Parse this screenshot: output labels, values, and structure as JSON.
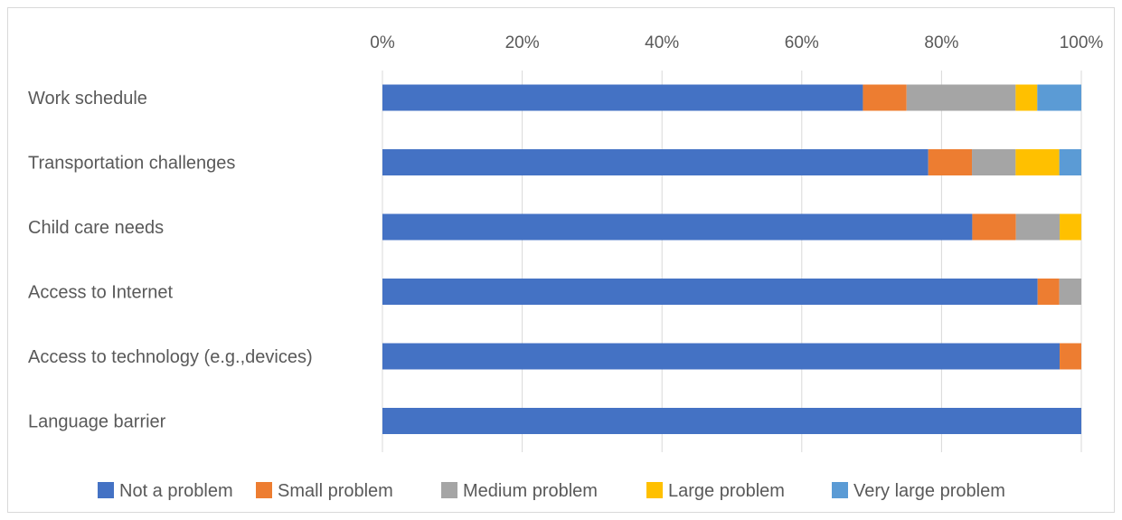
{
  "chart_data": {
    "type": "bar",
    "orientation": "horizontal",
    "stacked": "percent",
    "title": "",
    "xlabel": "",
    "ylabel": "",
    "xlim": [
      0,
      100
    ],
    "xticks": [
      "0%",
      "20%",
      "40%",
      "60%",
      "80%",
      "100%"
    ],
    "grid": true,
    "legend_position": "bottom",
    "categories": [
      "Work schedule",
      "Transportation challenges",
      "Child care needs",
      "Access to Internet",
      "Access to technology (e.g.,devices)",
      "Language barrier"
    ],
    "series": [
      {
        "name": "Not a problem",
        "color": "#4472C4",
        "values": [
          68.75,
          78.1,
          84.4,
          93.75,
          96.9,
          100
        ]
      },
      {
        "name": "Small problem",
        "color": "#ED7D31",
        "values": [
          6.25,
          6.25,
          6.25,
          3.1,
          3.1,
          0
        ]
      },
      {
        "name": "Medium problem",
        "color": "#A5A5A5",
        "values": [
          15.6,
          6.25,
          6.25,
          3.15,
          0,
          0
        ]
      },
      {
        "name": "Large problem",
        "color": "#FFC000",
        "values": [
          3.1,
          6.25,
          3.1,
          0,
          0,
          0
        ]
      },
      {
        "name": "Very large problem",
        "color": "#5B9BD5",
        "values": [
          6.3,
          3.15,
          0,
          0,
          0,
          0
        ]
      }
    ]
  }
}
